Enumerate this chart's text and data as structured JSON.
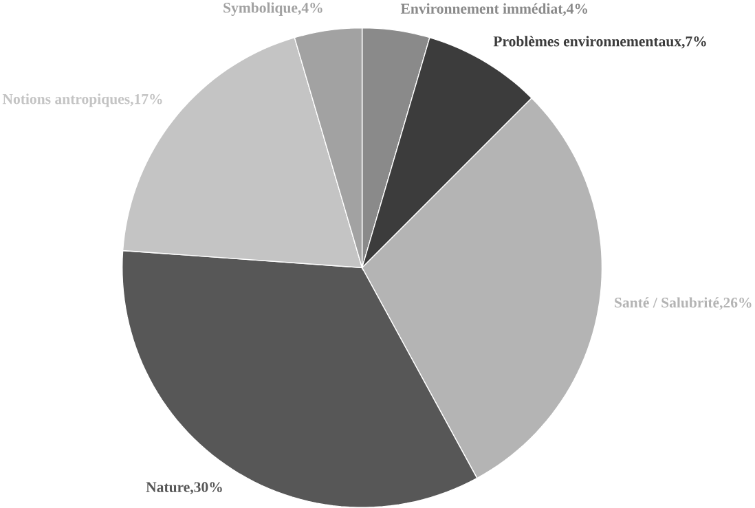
{
  "chart_data": {
    "type": "pie",
    "categories": [
      "Environnement immédiat,4%",
      "Problèmes environnementaux,7%",
      "Santé / Salubrité,26%",
      "Nature,30%",
      "Notions antropiques,17%",
      "Symbolique,4%"
    ],
    "values": [
      4,
      7,
      26,
      30,
      17,
      4
    ],
    "colors": [
      "#8a8a8a",
      "#3c3c3c",
      "#b4b4b4",
      "#575757",
      "#c4c4c4",
      "#a2a2a2"
    ]
  }
}
